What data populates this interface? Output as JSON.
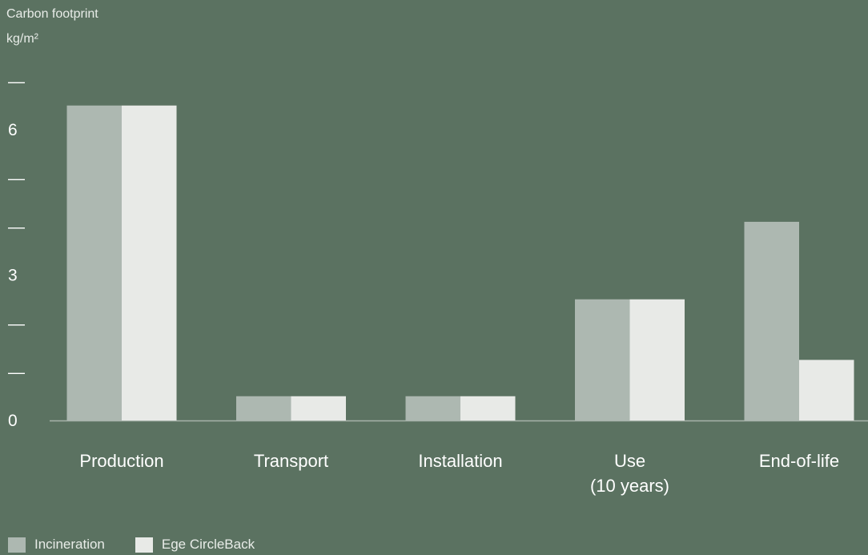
{
  "chart_data": {
    "type": "bar",
    "title": "Carbon footprint",
    "ylabel": "kg/m²",
    "xlabel": "",
    "categories": [
      "Production",
      "Transport",
      "Installation",
      "Use\n(10 years)",
      "End-of-life"
    ],
    "series": [
      {
        "name": "Incineration",
        "color": "#adb8b1",
        "values": [
          6.5,
          0.5,
          0.5,
          2.5,
          4.1
        ]
      },
      {
        "name": "Ege CircleBack",
        "color": "#e8eae7",
        "values": [
          6.5,
          0.5,
          0.5,
          2.5,
          1.25
        ]
      }
    ],
    "ylim": [
      0,
      7
    ],
    "yticks": [
      {
        "value": 0,
        "label": "0"
      },
      {
        "value": 1,
        "label": "—"
      },
      {
        "value": 2,
        "label": "—"
      },
      {
        "value": 3,
        "label": "3"
      },
      {
        "value": 4,
        "label": "—"
      },
      {
        "value": 5,
        "label": "—"
      },
      {
        "value": 6,
        "label": "6"
      },
      {
        "value": 7,
        "label": "—"
      }
    ],
    "grid": false,
    "legend_position": "bottom-left"
  }
}
